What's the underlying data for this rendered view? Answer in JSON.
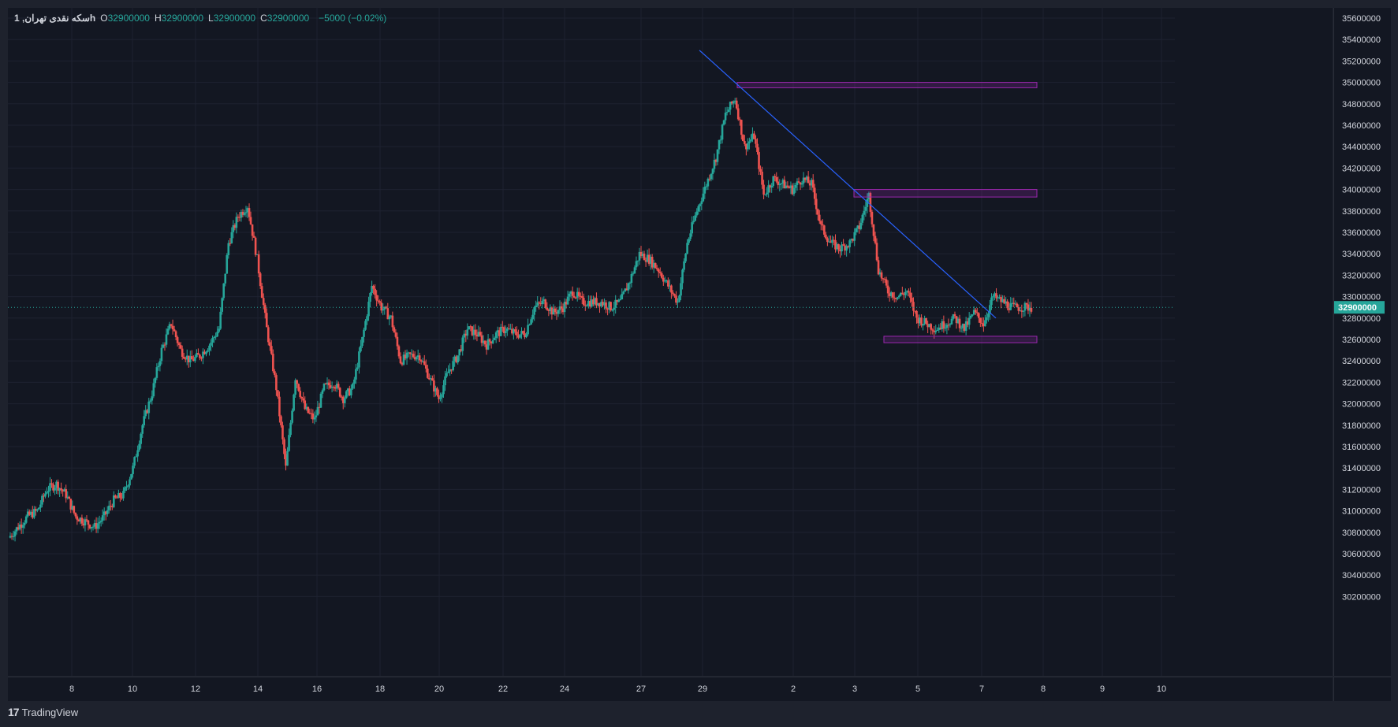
{
  "legend": {
    "symbol": "سکه نقدی تهران, 1h",
    "open_label": "O",
    "open_value": "32900000",
    "high_label": "H",
    "high_value": "32900000",
    "low_label": "L",
    "low_value": "32900000",
    "close_label": "C",
    "close_value": "32900000",
    "change": "−5000 (−0.02%)"
  },
  "brand": {
    "logo": "17",
    "name": "TradingView"
  },
  "last_price_label": "32900000",
  "colors": {
    "up": "#26a69a",
    "down": "#ef5350",
    "trendline": "#2962ff",
    "zone_border": "#9c27b0",
    "zone_fill": "rgba(156,39,176,0.22)",
    "grid": "#1e2230"
  },
  "chart_data": {
    "type": "candlestick",
    "y_ticks": [
      "35600000",
      "35400000",
      "35200000",
      "35000000",
      "34800000",
      "34600000",
      "34400000",
      "34200000",
      "34000000",
      "33800000",
      "33600000",
      "33400000",
      "33200000",
      "33000000",
      "32800000",
      "32600000",
      "32400000",
      "32200000",
      "32000000",
      "31800000",
      "31600000",
      "31400000",
      "31200000",
      "31000000",
      "30800000",
      "30600000",
      "30400000",
      "30200000"
    ],
    "ylim": [
      30200000,
      35600000
    ],
    "x_ticks": [
      "8",
      "10",
      "12",
      "14",
      "16",
      "18",
      "20",
      "22",
      "24",
      "27",
      "29",
      "2",
      "3",
      "5",
      "7",
      "8",
      "9",
      "10"
    ],
    "last_price": 32900000,
    "series": [
      {
        "name": "سکه نقدی تهران",
        "price_path": [
          30750000,
          30850000,
          30950000,
          31000000,
          31200000,
          31250000,
          31150000,
          30950000,
          30900000,
          30850000,
          30950000,
          31100000,
          31150000,
          31400000,
          31800000,
          32100000,
          32500000,
          32750000,
          32500000,
          32400000,
          32450000,
          32550000,
          32700000,
          33500000,
          33750000,
          33850000,
          33350000,
          32700000,
          32150000,
          31400000,
          32250000,
          31950000,
          31850000,
          32150000,
          32200000,
          32050000,
          32150000,
          32600000,
          33100000,
          32900000,
          32800000,
          32400000,
          32450000,
          32450000,
          32250000,
          32050000,
          32300000,
          32450000,
          32700000,
          32650000,
          32550000,
          32650000,
          32700000,
          32650000,
          32650000,
          32900000,
          32950000,
          32850000,
          32900000,
          33050000,
          32950000,
          32950000,
          32950000,
          32900000,
          32950000,
          33150000,
          33400000,
          33350000,
          33250000,
          33100000,
          32950000,
          33500000,
          33800000,
          34050000,
          34300000,
          34700000,
          34850000,
          34400000,
          34500000,
          33950000,
          34100000,
          34050000,
          34000000,
          34100000,
          34050000,
          33650000,
          33500000,
          33450000,
          33500000,
          33650000,
          33950000,
          33250000,
          33050000,
          33000000,
          33050000,
          32800000,
          32750000,
          32700000,
          32750000,
          32800000,
          32700000,
          32850000,
          32750000,
          33000000,
          32950000,
          32900000,
          32900000,
          32900000
        ]
      }
    ],
    "trendline": {
      "from": {
        "x": "28",
        "y": 35300000
      },
      "to": {
        "x": "7",
        "y": 32800000
      }
    },
    "zones": [
      {
        "y_top": 35000000,
        "y_bottom": 34950000
      },
      {
        "y_top": 34000000,
        "y_bottom": 33930000
      },
      {
        "y_top": 32630000,
        "y_bottom": 32570000
      }
    ]
  }
}
